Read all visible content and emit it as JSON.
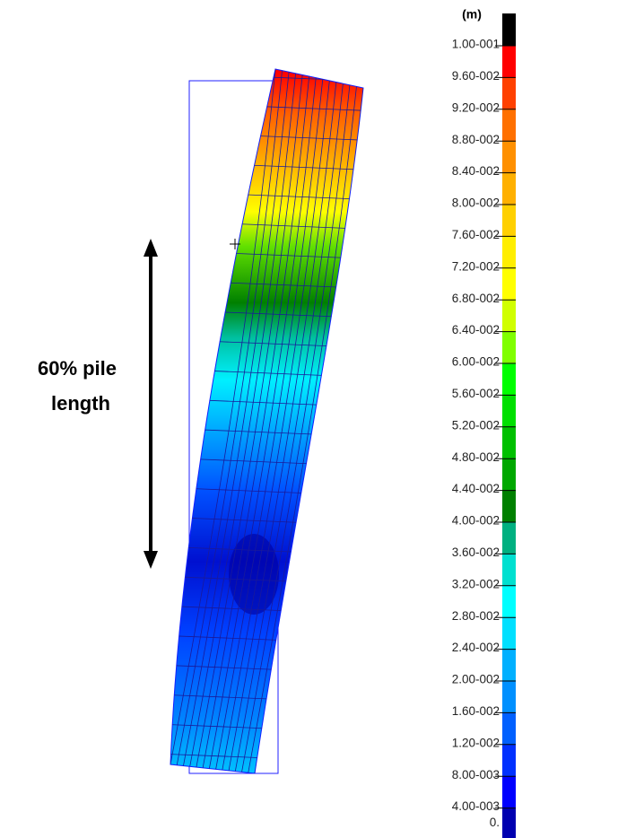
{
  "legend": {
    "unit": "(m)",
    "labels": [
      "1.00-001",
      "9.60-002",
      "9.20-002",
      "8.80-002",
      "8.40-002",
      "8.00-002",
      "7.60-002",
      "7.20-002",
      "6.80-002",
      "6.40-002",
      "6.00-002",
      "5.60-002",
      "5.20-002",
      "4.80-002",
      "4.40-002",
      "4.00-002",
      "3.60-002",
      "3.20-002",
      "2.80-002",
      "2.40-002",
      "2.00-002",
      "1.60-002",
      "1.20-002",
      "8.00-003",
      "4.00-003",
      "0."
    ],
    "colors": [
      "#000000",
      "#ff0000",
      "#ff4000",
      "#ff7000",
      "#ff9000",
      "#ffb000",
      "#ffd000",
      "#ffee00",
      "#ffff00",
      "#d0ff00",
      "#80ff00",
      "#00ff00",
      "#00e000",
      "#00c000",
      "#00a800",
      "#008000",
      "#00b080",
      "#00e0d0",
      "#00ffff",
      "#00e0ff",
      "#00b0ff",
      "#0090ff",
      "#0060ff",
      "#0030ff",
      "#0000ff",
      "#0000b0"
    ]
  },
  "annotation": {
    "lines": [
      "60% pile",
      "length"
    ]
  }
}
